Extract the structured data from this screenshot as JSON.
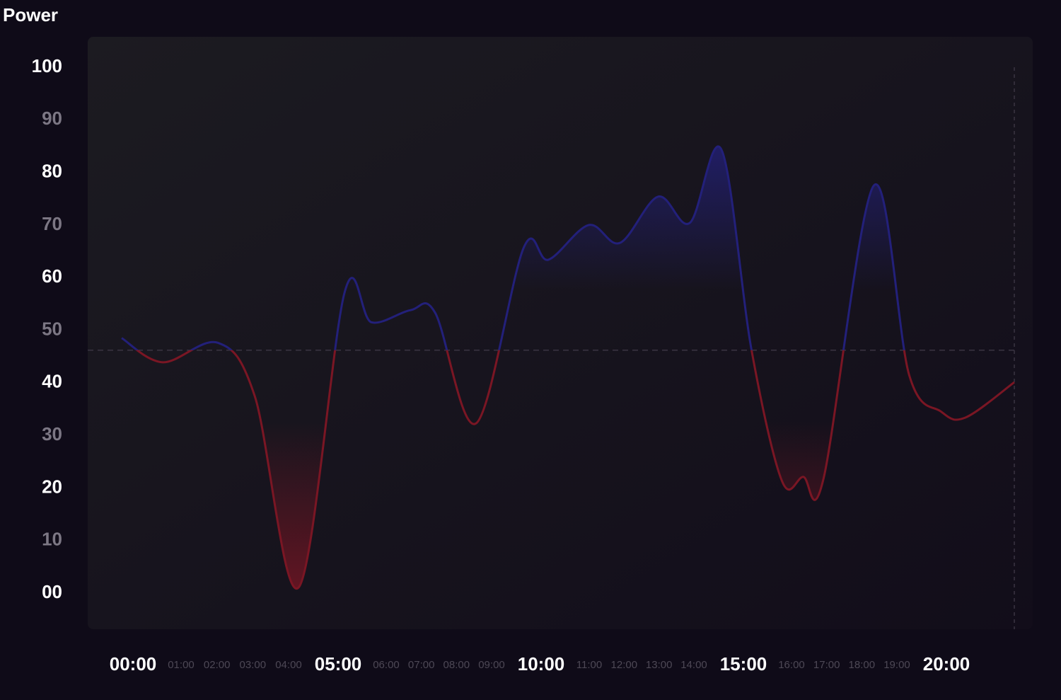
{
  "chart_data": {
    "type": "line",
    "title": "Power",
    "x_labels": [
      "00:00",
      "01:00",
      "02:00",
      "03:00",
      "04:00",
      "05:00",
      "06:00",
      "07:00",
      "08:00",
      "09:00",
      "10:00",
      "11:00",
      "12:00",
      "13:00",
      "14:00",
      "15:00",
      "16:00",
      "17:00",
      "18:00",
      "19:00",
      "20:00"
    ],
    "x": [
      -0.28,
      0.73,
      2.09,
      3.0,
      4.08,
      5.21,
      5.87,
      6.83,
      7.44,
      8.45,
      9.62,
      10.23,
      11.22,
      11.99,
      12.93,
      13.71,
      14.49,
      15.23,
      15.98,
      16.5,
      17.0,
      18.24,
      19.11,
      19.9,
      20.5,
      21.7
    ],
    "values": [
      48.5,
      43.9,
      47.6,
      37.4,
      1.1,
      57.2,
      51.5,
      53.8,
      53.3,
      32.3,
      65.7,
      63.4,
      70.0,
      66.6,
      75.4,
      70.4,
      84.3,
      46.2,
      21.3,
      22.1,
      21.7,
      77.5,
      41.5,
      34.5,
      33.4,
      40.1
    ],
    "xlim": [
      -0.28,
      21.7
    ],
    "ylim": [
      0,
      100
    ],
    "yticks": [
      {
        "value": 100,
        "label": "100"
      },
      90,
      80,
      70,
      60,
      50,
      40,
      30,
      20,
      10,
      {
        "value": 0,
        "label": "00"
      }
    ],
    "threshold": 46.2,
    "above_color": "#23207a",
    "below_color": "#7a1624"
  }
}
